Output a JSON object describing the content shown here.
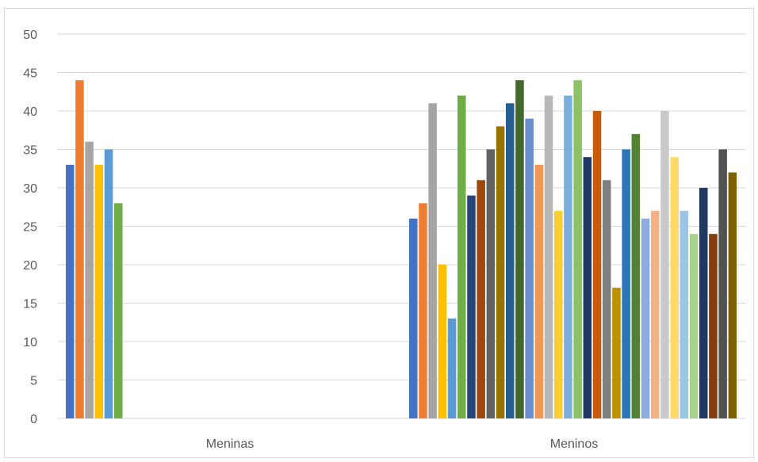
{
  "chart_data": {
    "type": "bar",
    "categories": [
      "Meninas",
      "Meninos"
    ],
    "ylim": [
      0,
      50
    ],
    "yticks": [
      0,
      5,
      10,
      15,
      20,
      25,
      30,
      35,
      40,
      45,
      50
    ],
    "grid": true,
    "legend": "none",
    "groups": [
      {
        "category": "Meninas",
        "values": [
          33,
          44,
          36,
          33,
          35,
          28
        ]
      },
      {
        "category": "Meninos",
        "values": [
          26,
          28,
          41,
          20,
          13,
          42,
          29,
          31,
          35,
          38,
          41,
          44,
          39,
          33,
          42,
          27,
          42,
          44,
          34,
          40,
          31,
          17,
          35,
          37,
          26,
          27,
          40,
          34,
          27,
          24,
          30,
          24,
          35,
          32
        ]
      }
    ],
    "colors": [
      "#4472C4",
      "#ED7D31",
      "#A5A5A5",
      "#FFC000",
      "#5B9BD5",
      "#70AD47",
      "#264478",
      "#9E480E",
      "#636363",
      "#997300",
      "#255E91",
      "#43682B",
      "#698ED0",
      "#F1975A",
      "#B7B7B7",
      "#FFCD33",
      "#7CAFDD",
      "#8CC168",
      "#203864",
      "#C55A11",
      "#7F7F7F",
      "#BF9000",
      "#2E75B6",
      "#548235",
      "#8FAADC",
      "#F4B183",
      "#C9C9C9",
      "#FFD966",
      "#9DC3E6",
      "#A9D18E",
      "#1F3864",
      "#843C0C",
      "#525252",
      "#7F6000"
    ]
  }
}
